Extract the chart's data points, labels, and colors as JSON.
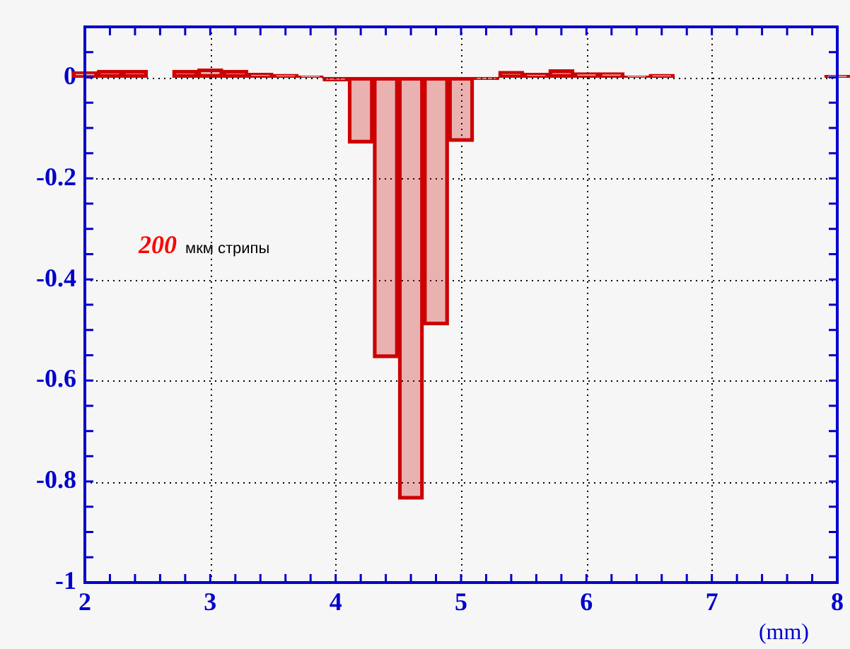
{
  "chart_data": {
    "type": "bar",
    "xlabel": "(mm)",
    "annotations": [
      "200",
      "мкм стрипы"
    ],
    "x": [
      2.0,
      2.2,
      2.4,
      2.6,
      2.8,
      3.0,
      3.2,
      3.4,
      3.6,
      3.8,
      4.0,
      4.2,
      4.4,
      4.6,
      4.8,
      5.0,
      5.2,
      5.4,
      5.6,
      5.8,
      6.0,
      6.2,
      6.4,
      6.6,
      6.8,
      7.0,
      7.2,
      7.4,
      7.6,
      7.8,
      8.0
    ],
    "values": [
      0.011,
      0.014,
      0.014,
      0,
      0.014,
      0.017,
      0.014,
      0.008,
      0.006,
      0.003,
      -0.007,
      -0.13,
      -0.555,
      -0.835,
      -0.49,
      -0.127,
      -0.004,
      0.012,
      0.008,
      0.015,
      0.009,
      0.009,
      0.003,
      0.006,
      0,
      0,
      0,
      0,
      0,
      0,
      0.004
    ],
    "color": "#cc0000",
    "xlim": [
      2,
      8
    ],
    "xticks": [
      2,
      {
        "value": 2.2,
        "label": null
      },
      {
        "value": 2.4,
        "label": null
      },
      {
        "value": 2.6,
        "label": null
      },
      {
        "value": 2.8,
        "label": null
      },
      3,
      {
        "value": 3.2,
        "label": null
      },
      {
        "value": 3.4,
        "label": null
      },
      {
        "value": 3.6,
        "label": null
      },
      {
        "value": 3.8,
        "label": null
      },
      4,
      {
        "value": 4.2,
        "label": null
      },
      {
        "value": 4.4,
        "label": null
      },
      {
        "value": 4.6,
        "label": null
      },
      {
        "value": 4.8,
        "label": null
      },
      5,
      {
        "value": 5.2,
        "label": null
      },
      {
        "value": 5.4,
        "label": null
      },
      {
        "value": 5.6,
        "label": null
      },
      {
        "value": 5.8,
        "label": null
      },
      6,
      {
        "value": 6.2,
        "label": null
      },
      {
        "value": 6.4,
        "label": null
      },
      {
        "value": 6.6,
        "label": null
      },
      {
        "value": 6.8,
        "label": null
      },
      7,
      {
        "value": 7.2,
        "label": null
      },
      {
        "value": 7.4,
        "label": null
      },
      {
        "value": 7.6,
        "label": null
      },
      {
        "value": 7.8,
        "label": null
      },
      8
    ],
    "ylim": [
      -1,
      0.1
    ],
    "yticks": [
      {
        "value": 0.05,
        "label": null
      },
      0,
      {
        "value": -0.05,
        "label": null
      },
      {
        "value": -0.1,
        "label": null
      },
      {
        "value": -0.15,
        "label": null
      },
      -0.2,
      {
        "value": -0.25,
        "label": null
      },
      {
        "value": -0.3,
        "label": null
      },
      {
        "value": -0.35,
        "label": null
      },
      -0.4,
      {
        "value": -0.45,
        "label": null
      },
      {
        "value": -0.5,
        "label": null
      },
      {
        "value": -0.55,
        "label": null
      },
      -0.6,
      {
        "value": -0.65,
        "label": null
      },
      {
        "value": -0.7,
        "label": null
      },
      {
        "value": -0.75,
        "label": null
      },
      -0.8,
      {
        "value": -0.85,
        "label": null
      },
      {
        "value": -0.9,
        "label": null
      },
      {
        "value": -0.95,
        "label": null
      },
      -1
    ],
    "grid": true,
    "legend": false
  }
}
